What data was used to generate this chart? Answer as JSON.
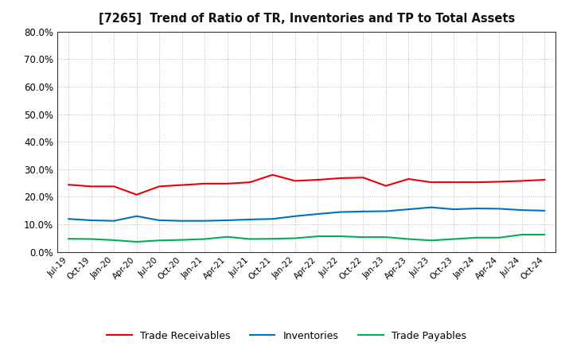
{
  "title": "[7265]  Trend of Ratio of TR, Inventories and TP to Total Assets",
  "x_labels": [
    "Jul-19",
    "Oct-19",
    "Jan-20",
    "Apr-20",
    "Jul-20",
    "Oct-20",
    "Jan-21",
    "Apr-21",
    "Jul-21",
    "Oct-21",
    "Jan-22",
    "Apr-22",
    "Jul-22",
    "Oct-22",
    "Jan-23",
    "Apr-23",
    "Jul-23",
    "Oct-23",
    "Jan-24",
    "Apr-24",
    "Jul-24",
    "Oct-24"
  ],
  "trade_receivables": [
    0.244,
    0.238,
    0.238,
    0.208,
    0.238,
    0.243,
    0.248,
    0.248,
    0.253,
    0.28,
    0.258,
    0.262,
    0.268,
    0.27,
    0.24,
    0.265,
    0.253,
    0.253,
    0.253,
    0.255,
    0.258,
    0.262
  ],
  "inventories": [
    0.12,
    0.115,
    0.113,
    0.13,
    0.115,
    0.113,
    0.113,
    0.115,
    0.118,
    0.12,
    0.13,
    0.138,
    0.145,
    0.147,
    0.148,
    0.155,
    0.162,
    0.155,
    0.158,
    0.157,
    0.152,
    0.15
  ],
  "trade_payables": [
    0.048,
    0.047,
    0.043,
    0.037,
    0.042,
    0.044,
    0.047,
    0.055,
    0.047,
    0.048,
    0.05,
    0.057,
    0.057,
    0.054,
    0.054,
    0.047,
    0.042,
    0.047,
    0.052,
    0.052,
    0.063,
    0.063
  ],
  "tr_color": "#e8000d",
  "inv_color": "#0070c0",
  "tp_color": "#00b050",
  "background_color": "#ffffff",
  "grid_color": "#999999",
  "ylim": [
    0.0,
    0.8
  ],
  "yticks": [
    0.0,
    0.1,
    0.2,
    0.3,
    0.4,
    0.5,
    0.6,
    0.7,
    0.8
  ],
  "legend_labels": [
    "Trade Receivables",
    "Inventories",
    "Trade Payables"
  ]
}
